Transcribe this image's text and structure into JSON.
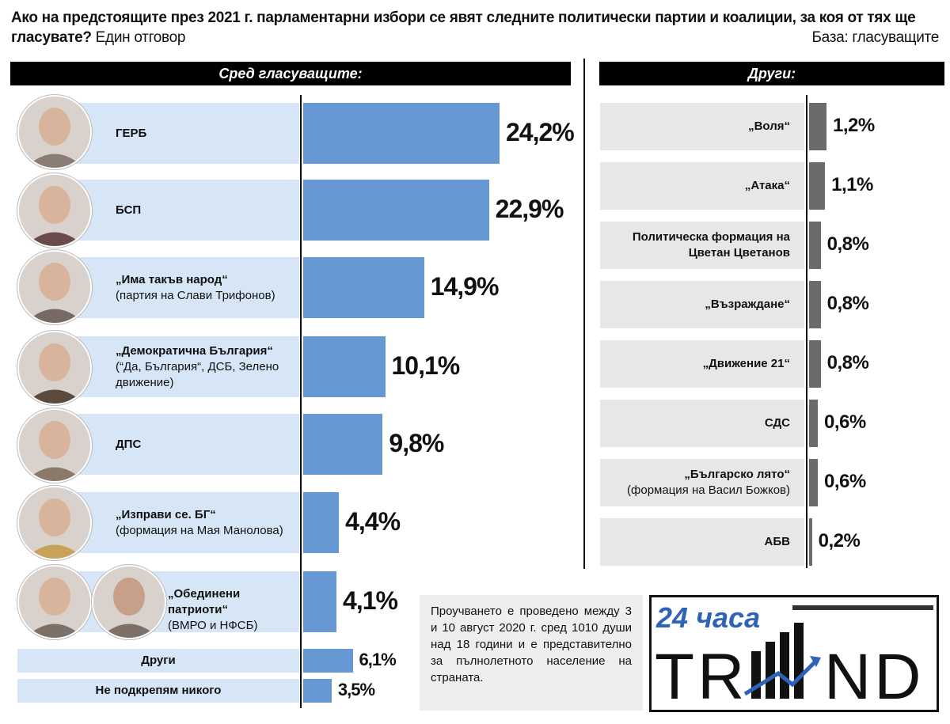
{
  "question": {
    "bold": "Ако на предстоящите през 2021 г. парламентарни избори се явят следните политически партии и коалиции, за коя от тях ще гласувате?",
    "note": "Един отговор",
    "base": "База: гласуващите"
  },
  "panels": {
    "left_header": "Сред гласуващите:",
    "right_header": "Други:"
  },
  "footnote": "Проучването е проведено между 3 и 10 август 2020 г. сред 1010 души над 18 години и е представително за пълнолетното население на страната.",
  "logo": {
    "top": "24 часа",
    "main": "TR",
    "main2": "ND"
  },
  "colors": {
    "bar_main": "#6699d3",
    "bar_others": "#6b6b6b",
    "row_bg": "#d6e6f6",
    "others_bg": "#e7e7e7"
  },
  "chart_data": [
    {
      "type": "bar",
      "orientation": "horizontal",
      "title": "Сред гласуващите:",
      "unit": "%",
      "categories": [
        {
          "name": "ГЕРБ",
          "sub": ""
        },
        {
          "name": "БСП",
          "sub": ""
        },
        {
          "name": "„Има такъв народ“",
          "sub": "(партия на Слави Трифонов)"
        },
        {
          "name": "„Демократична България“",
          "sub": "(“Да, България“, ДСБ, Зелено движение)"
        },
        {
          "name": "ДПС",
          "sub": ""
        },
        {
          "name": "„Изправи се. БГ“",
          "sub": "(формация на Мая Манолова)"
        },
        {
          "name": "„Обединени патриоти“",
          "sub": "(ВМРО и НФСБ)"
        },
        {
          "name": "Други",
          "sub": ""
        },
        {
          "name": "Не подкрепям никого",
          "sub": ""
        }
      ],
      "values": [
        24.2,
        22.9,
        14.9,
        10.1,
        9.8,
        4.4,
        4.1,
        6.1,
        3.5
      ],
      "value_labels": [
        "24,2%",
        "22,9%",
        "14,9%",
        "10,1%",
        "9,8%",
        "4,4%",
        "4,1%",
        "6,1%",
        "3,5%"
      ]
    },
    {
      "type": "bar",
      "orientation": "horizontal",
      "title": "Други:",
      "unit": "%",
      "categories": [
        {
          "name": "„Воля“",
          "sub": ""
        },
        {
          "name": "„Атака“",
          "sub": ""
        },
        {
          "name": "Политическа формация на Цветан Цветанов",
          "sub": ""
        },
        {
          "name": "„Възраждане“",
          "sub": ""
        },
        {
          "name": "„Движение 21“",
          "sub": ""
        },
        {
          "name": "СДС",
          "sub": ""
        },
        {
          "name": "„Българско лято“",
          "sub": "(формация на Васил Божков)"
        },
        {
          "name": "АБВ",
          "sub": ""
        }
      ],
      "values": [
        1.2,
        1.1,
        0.8,
        0.8,
        0.8,
        0.6,
        0.6,
        0.2
      ],
      "value_labels": [
        "1,2%",
        "1,1%",
        "0,8%",
        "0,8%",
        "0,8%",
        "0,6%",
        "0,6%",
        "0,2%"
      ]
    }
  ]
}
